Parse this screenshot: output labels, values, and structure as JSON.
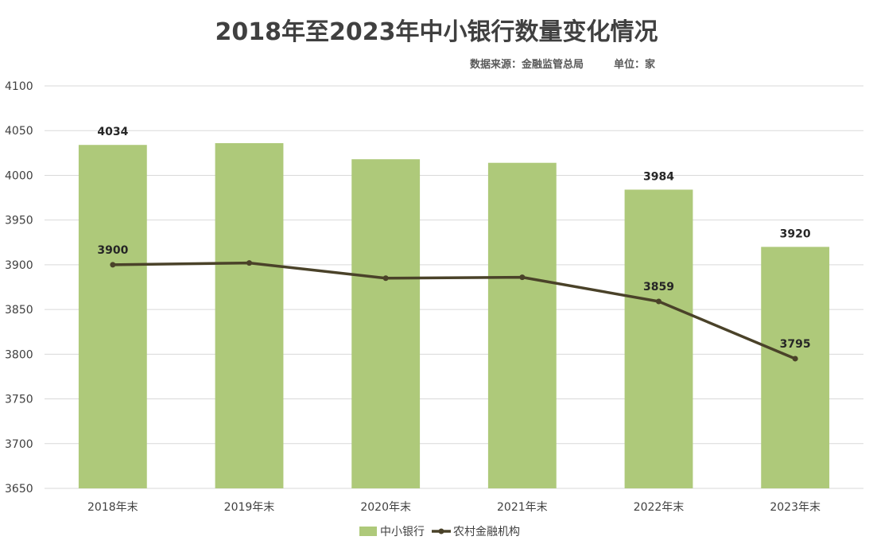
{
  "chart_data": {
    "type": "bar",
    "title": "2018年至2023年中小银行数量变化情况",
    "source": "数据来源：金融监管总局",
    "unit": "单位：家",
    "categories": [
      "2018年末",
      "2019年末",
      "2020年末",
      "2021年末",
      "2022年末",
      "2023年末"
    ],
    "ylim": [
      3650,
      4100
    ],
    "yticks": [
      3650,
      3700,
      3750,
      3800,
      3850,
      3900,
      3950,
      4000,
      4050,
      4100
    ],
    "grid": true,
    "legend_position": "bottom",
    "series": [
      {
        "name": "中小银行",
        "kind": "bar",
        "color": "#aec97a",
        "values": [
          4034,
          4036,
          4018,
          4014,
          3984,
          3920
        ],
        "labels": [
          "4034",
          "",
          "",
          "",
          "3984",
          "3920"
        ]
      },
      {
        "name": "农村金融机构",
        "kind": "line",
        "color": "#4a4229",
        "values": [
          3900,
          3902,
          3885,
          3886,
          3859,
          3795
        ],
        "labels": [
          "3900",
          "",
          "",
          "",
          "3859",
          "3795"
        ]
      }
    ]
  }
}
